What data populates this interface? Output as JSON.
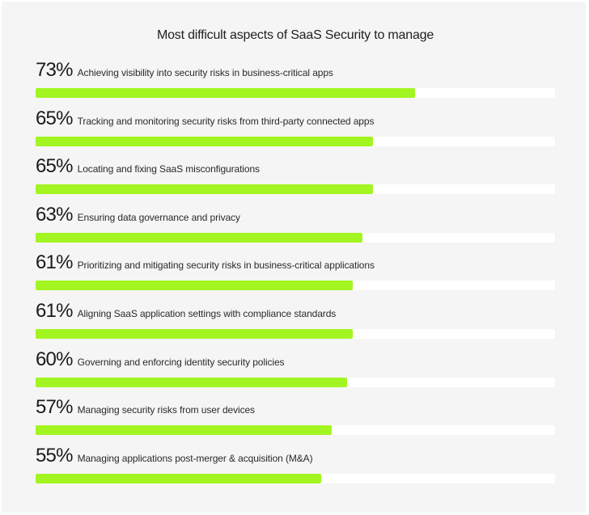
{
  "chart_data": {
    "type": "bar",
    "orientation": "horizontal",
    "title": "Most difficult aspects of SaaS Security to manage",
    "xlim": [
      0,
      100
    ],
    "bar_color": "#a3f521",
    "track_color": "#ffffff",
    "background_color": "#f5f5f5",
    "categories": [
      "Achieving visibility into security risks in business-critical apps",
      "Tracking and monitoring security risks from third-party connected apps",
      "Locating and fixing SaaS misconfigurations",
      "Ensuring data governance and privacy",
      "Prioritizing and mitigating security risks in business-critical applications",
      "Aligning SaaS application settings with compliance standards",
      "Governing and enforcing identity security policies",
      "Managing security risks from user devices",
      "Managing applications post-merger & acquisition (M&A)"
    ],
    "values": [
      73,
      65,
      65,
      63,
      61,
      61,
      60,
      57,
      55
    ],
    "value_suffix": "%"
  }
}
